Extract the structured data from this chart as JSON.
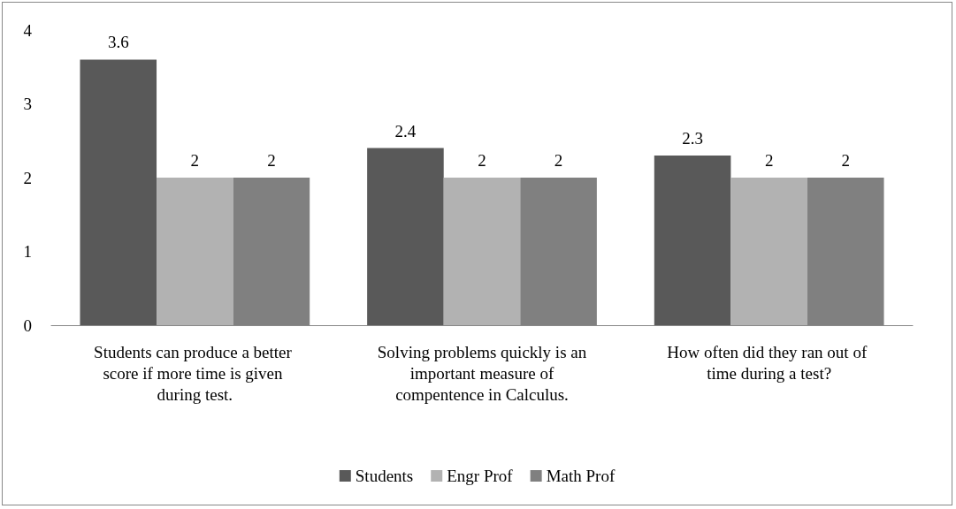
{
  "chart_data": {
    "type": "bar",
    "categories": [
      "Students can produce a better score if more time is given during test.",
      "Solving problems quickly is an important measure of compentence in Calculus.",
      "How often did they ran out of time during a test?"
    ],
    "series": [
      {
        "name": "Students",
        "color": "#595959",
        "values": [
          3.6,
          2.4,
          2.3
        ]
      },
      {
        "name": "Engr Prof",
        "color": "#b2b2b2",
        "values": [
          2,
          2,
          2
        ]
      },
      {
        "name": "Math Prof",
        "color": "#808080",
        "values": [
          2,
          2,
          2
        ]
      }
    ],
    "ylim": [
      0,
      4
    ],
    "yticks": [
      0,
      1,
      2,
      3,
      4
    ],
    "grid": false,
    "legend": "bottom",
    "data_labels": true
  }
}
